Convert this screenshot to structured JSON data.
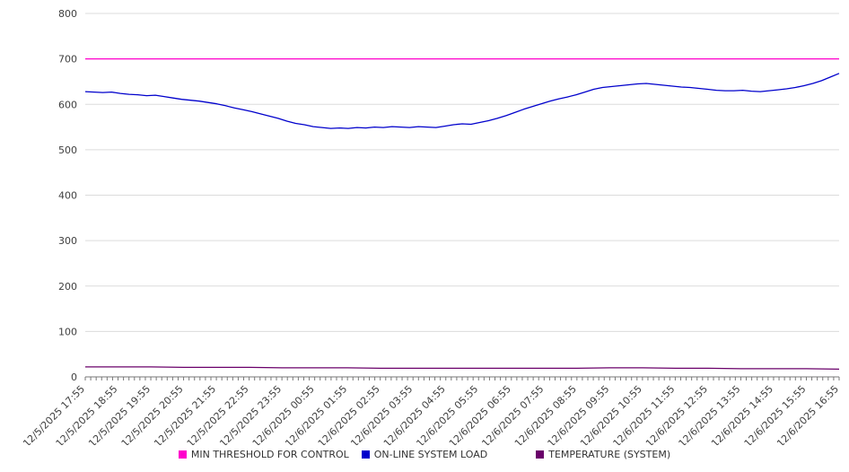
{
  "chart_data": {
    "type": "line",
    "title": "",
    "xlabel": "",
    "ylabel": "",
    "ylim": [
      0,
      800
    ],
    "ytick_step": 100,
    "grid": "horizontal",
    "legend_position": "bottom",
    "x_labels": [
      "12/5/2025 17:55",
      "12/5/2025 18:55",
      "12/5/2025 19:55",
      "12/5/2025 20:55",
      "12/5/2025 21:55",
      "12/5/2025 22:55",
      "12/5/2025 23:55",
      "12/6/2025 00:55",
      "12/6/2025 01:55",
      "12/6/2025 02:55",
      "12/6/2025 03:55",
      "12/6/2025 04:55",
      "12/6/2025 05:55",
      "12/6/2025 06:55",
      "12/6/2025 07:55",
      "12/6/2025 08:55",
      "12/6/2025 09:55",
      "12/6/2025 10:55",
      "12/6/2025 11:55",
      "12/6/2025 12:55",
      "12/6/2025 13:55",
      "12/6/2025 14:55",
      "12/6/2025 15:55",
      "12/6/2025 16:55"
    ],
    "series": [
      {
        "name": "MIN THRESHOLD FOR CONTROL",
        "color": "#ff00cc",
        "values": [
          700,
          700
        ]
      },
      {
        "name": "ON-LINE SYSTEM LOAD",
        "color": "#0000cc",
        "values": [
          628,
          627,
          626,
          627,
          624,
          622,
          621,
          619,
          620,
          617,
          614,
          611,
          609,
          607,
          604,
          601,
          597,
          592,
          588,
          584,
          579,
          574,
          569,
          563,
          558,
          555,
          551,
          549,
          547,
          548,
          547,
          549,
          548,
          550,
          549,
          551,
          550,
          549,
          551,
          550,
          549,
          552,
          555,
          557,
          556,
          560,
          564,
          569,
          575,
          582,
          589,
          595,
          601,
          607,
          612,
          616,
          621,
          627,
          633,
          637,
          639,
          641,
          643,
          645,
          646,
          644,
          642,
          640,
          638,
          637,
          635,
          633,
          631,
          630,
          630,
          631,
          629,
          628,
          630,
          632,
          634,
          637,
          641,
          646,
          652,
          660,
          668
        ]
      },
      {
        "name": "TEMPERATURE (SYSTEM)",
        "color": "#6a006a",
        "values": [
          22,
          22,
          22,
          21,
          21,
          21,
          20,
          20,
          20,
          19,
          19,
          19,
          19,
          19,
          19,
          19,
          20,
          20,
          19,
          19,
          18,
          18,
          18,
          17
        ]
      }
    ]
  }
}
